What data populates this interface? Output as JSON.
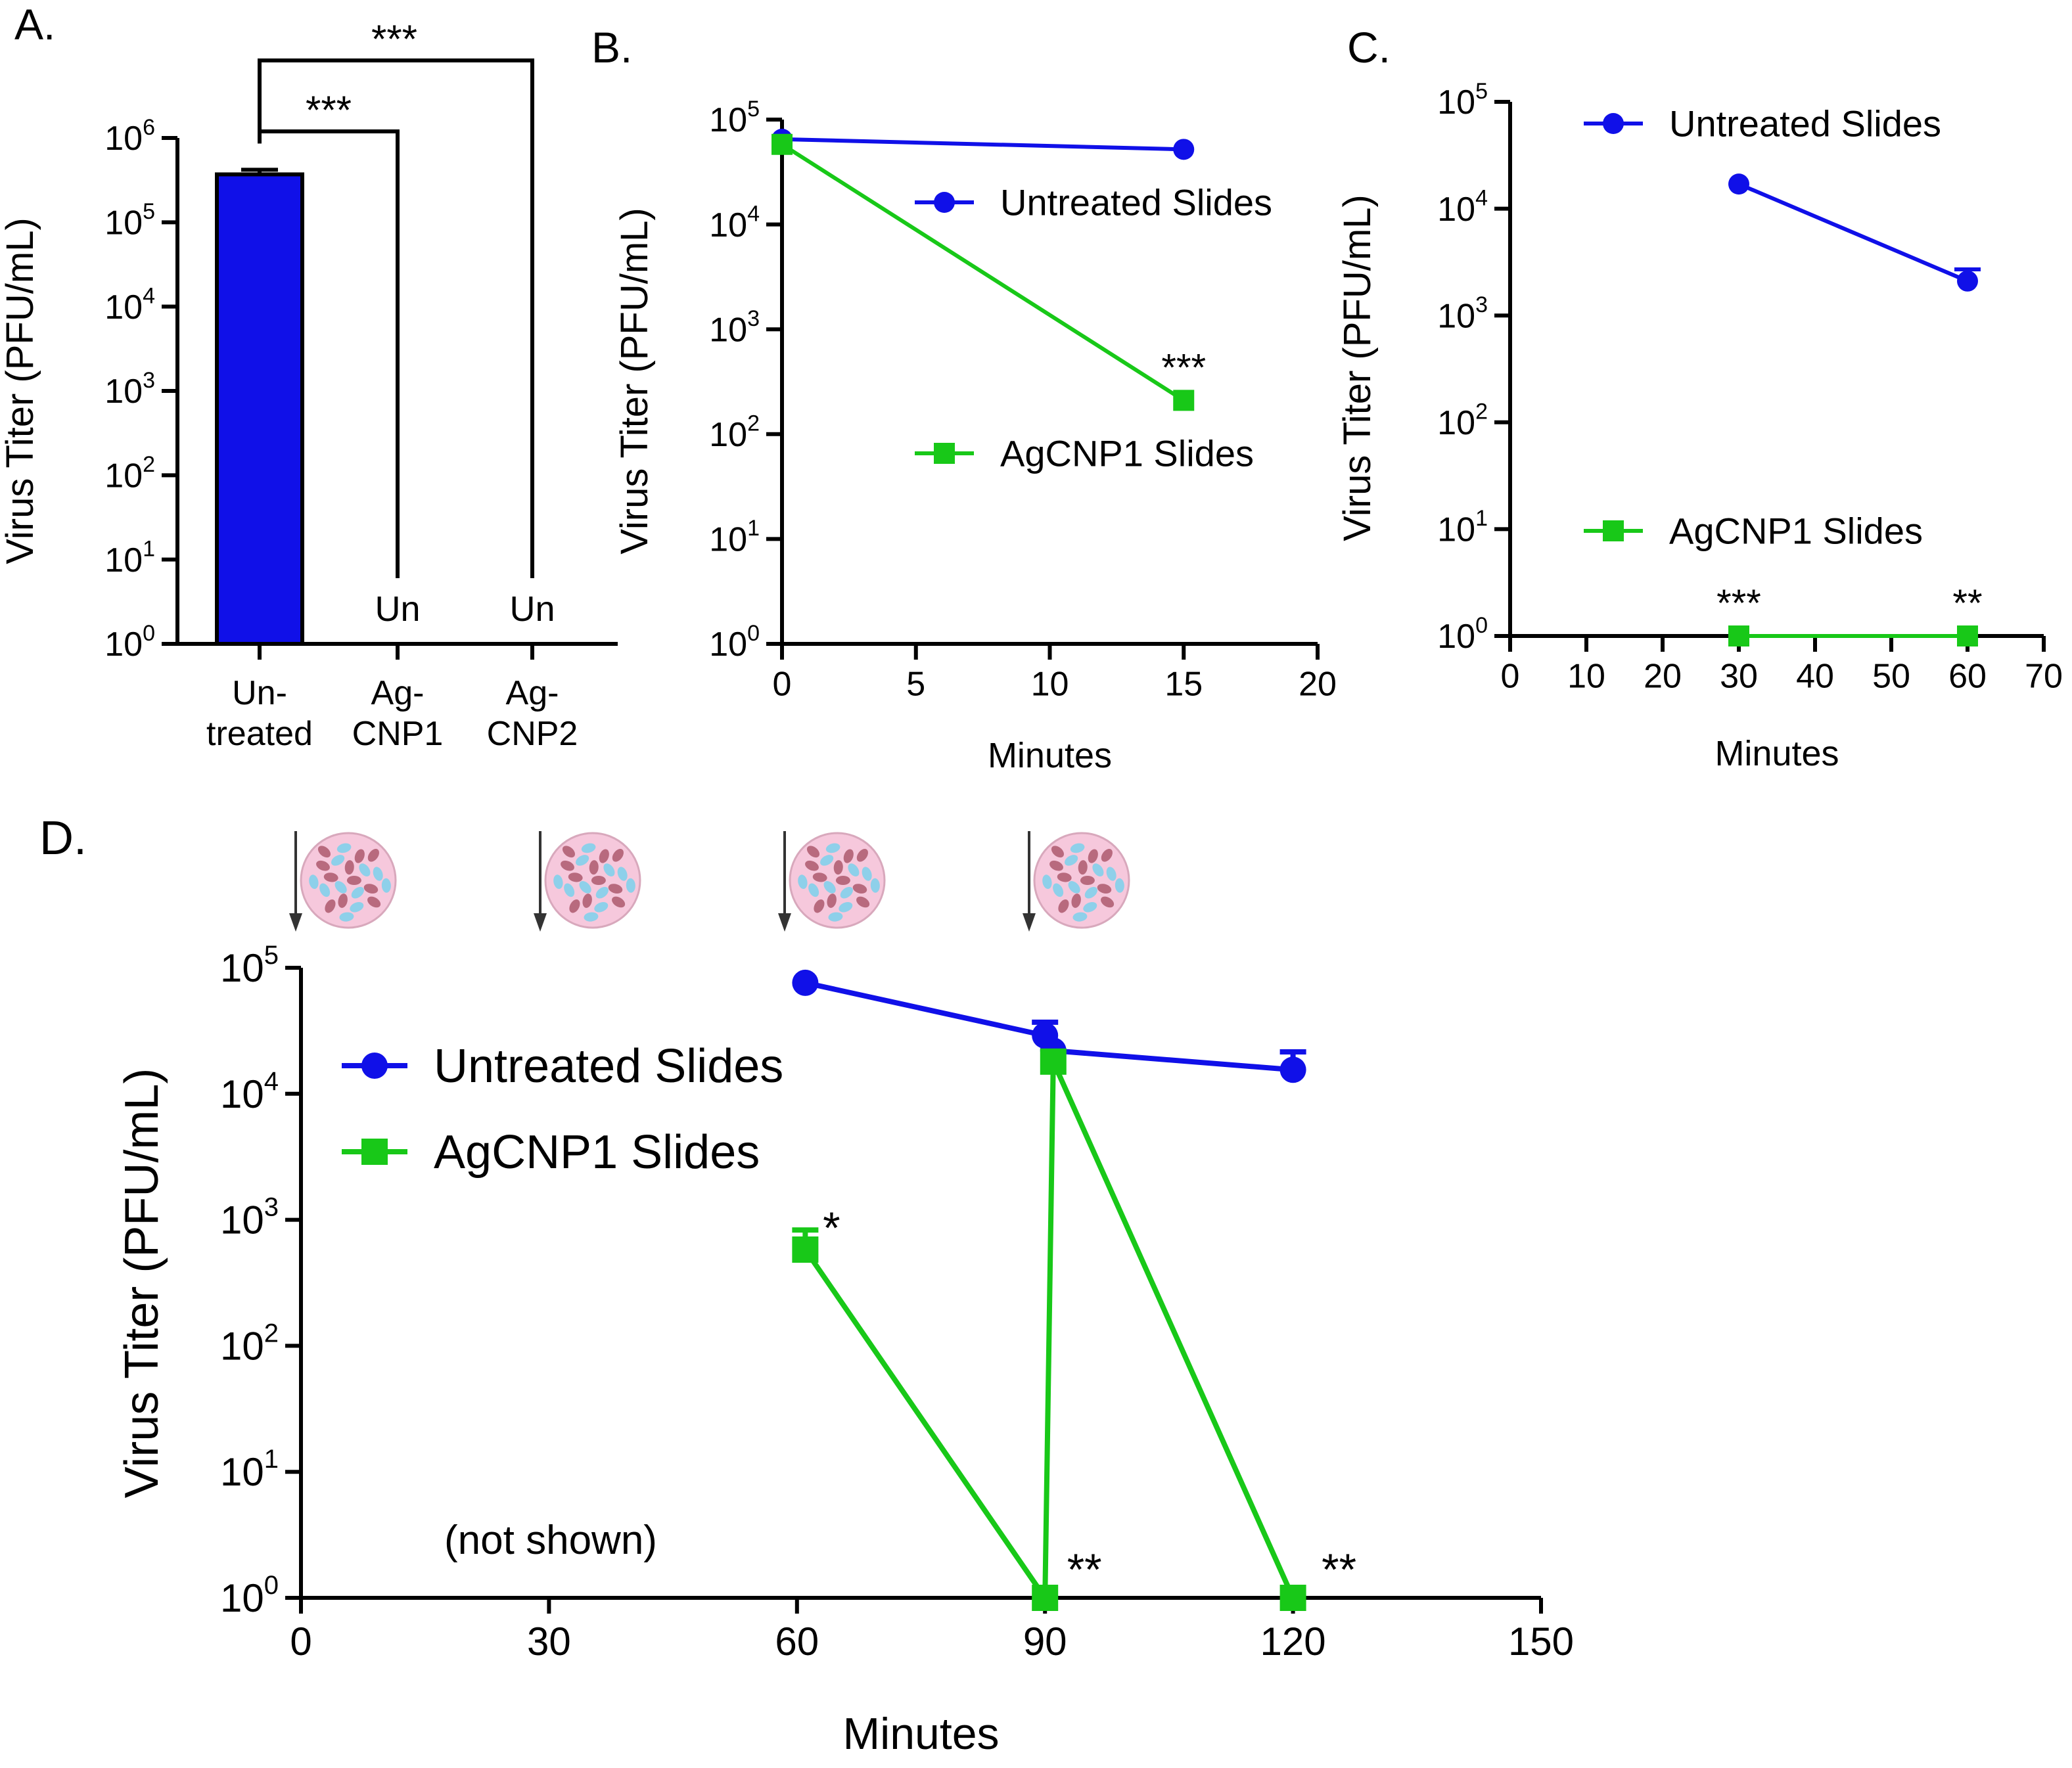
{
  "figure": {
    "colors": {
      "blue": "#1010e8",
      "green": "#18c818",
      "black": "#000000",
      "particle_pink": "#f6c8dc",
      "particle_blue": "#8ed0ea",
      "particle_red": "#b86a7e"
    }
  },
  "chart_data": [
    {
      "panel": "A.",
      "type": "bar",
      "scale": "log",
      "ylabel": "Virus Titer (PFU/mL)",
      "ylim": [
        1,
        1000000
      ],
      "ytick_exponents": [
        "0",
        "1",
        "2",
        "3",
        "4",
        "5",
        "6"
      ],
      "categories": [
        [
          "Un-",
          "treated"
        ],
        [
          "Ag-",
          "CNP1"
        ],
        [
          "Ag-",
          "CNP2"
        ]
      ],
      "values": [
        370000,
        null,
        null
      ],
      "errors": [
        50000,
        null,
        null
      ],
      "bar_color": "#1010e8",
      "undetected_label": "Un",
      "undetected": [
        false,
        true,
        true
      ],
      "significance": [
        {
          "from": 0,
          "to": 1,
          "label": "***"
        },
        {
          "from": 0,
          "to": 2,
          "label": "***"
        }
      ]
    },
    {
      "panel": "B.",
      "type": "line",
      "scale": "log",
      "ylabel": "Virus Titer (PFU/mL)",
      "xlabel": "Minutes",
      "xlim": [
        0,
        20
      ],
      "xticks": [
        "0",
        "5",
        "10",
        "15",
        "20"
      ],
      "ylim": [
        1,
        100000
      ],
      "ytick_exponents": [
        "0",
        "1",
        "2",
        "3",
        "4",
        "5"
      ],
      "series": [
        {
          "name": "Untreated Slides",
          "marker": "circle",
          "color": "#1010e8",
          "x": [
            0,
            15
          ],
          "values": [
            65000,
            52000
          ]
        },
        {
          "name": "AgCNP1 Slides",
          "marker": "square",
          "color": "#18c818",
          "x": [
            0,
            15
          ],
          "values": [
            58000,
            210
          ]
        }
      ],
      "annotations": [
        {
          "x": 15,
          "y": 210,
          "label": "***"
        }
      ]
    },
    {
      "panel": "C.",
      "type": "line",
      "scale": "log",
      "ylabel": "Virus Titer (PFU/mL)",
      "xlabel": "Minutes",
      "xlim": [
        0,
        70
      ],
      "xticks": [
        "0",
        "10",
        "20",
        "30",
        "40",
        "50",
        "60",
        "70"
      ],
      "ylim": [
        1,
        100000
      ],
      "ytick_exponents": [
        "0",
        "1",
        "2",
        "3",
        "4",
        "5"
      ],
      "series": [
        {
          "name": "Untreated Slides",
          "marker": "circle",
          "color": "#1010e8",
          "x": [
            30,
            60
          ],
          "values": [
            17000,
            2100
          ],
          "errors": [
            0,
            600
          ]
        },
        {
          "name": "AgCNP1 Slides",
          "marker": "square",
          "color": "#18c818",
          "x": [
            30,
            60
          ],
          "values": [
            1,
            1
          ]
        }
      ],
      "annotations": [
        {
          "x": 30,
          "y": 1,
          "label": "***"
        },
        {
          "x": 60,
          "y": 1,
          "label": "**"
        }
      ]
    },
    {
      "panel": "D.",
      "type": "line",
      "scale": "log",
      "ylabel": "Virus Titer (PFU/mL)",
      "xlabel": "Minutes",
      "xlim": [
        0,
        150
      ],
      "xticks": [
        "0",
        "30",
        "60",
        "90",
        "120",
        "150"
      ],
      "ylim": [
        1,
        100000
      ],
      "ytick_exponents": [
        "0",
        "1",
        "2",
        "3",
        "4",
        "5"
      ],
      "series": [
        {
          "name": "Untreated Slides",
          "marker": "circle",
          "color": "#1010e8",
          "x": [
            61,
            90,
            91,
            120
          ],
          "values": [
            76000,
            29000,
            22000,
            15500
          ],
          "errors": [
            0,
            8000,
            0,
            6000
          ]
        },
        {
          "name": "AgCNP1 Slides",
          "marker": "square",
          "color": "#18c818",
          "x": [
            61,
            90,
            91,
            120
          ],
          "values": [
            580,
            1,
            18000,
            1
          ],
          "errors": [
            250,
            0,
            0,
            0
          ]
        }
      ],
      "annotations": [
        {
          "x": 61,
          "y": 580,
          "label": "*"
        },
        {
          "x": 90,
          "y": 1,
          "label": "**"
        },
        {
          "x": 120,
          "y": 1,
          "label": "**"
        }
      ],
      "note": "(not shown)",
      "inoculation_times": [
        0,
        30,
        60,
        90
      ]
    }
  ]
}
